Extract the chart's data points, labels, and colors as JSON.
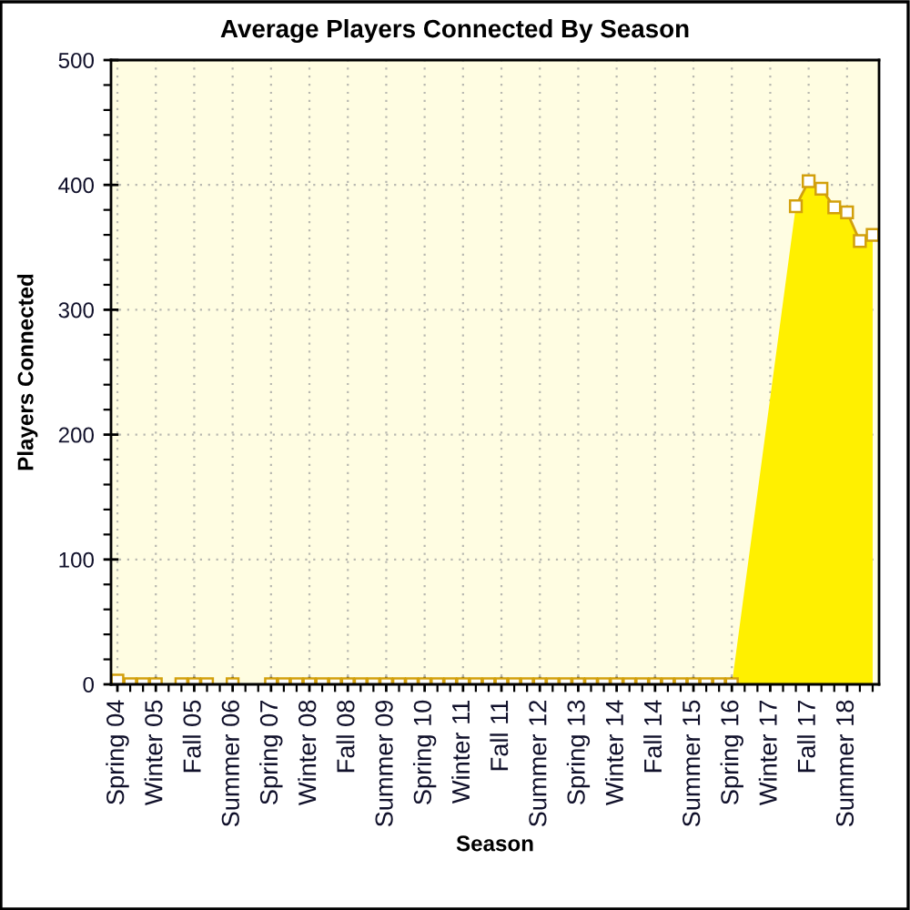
{
  "chart_data": {
    "type": "area",
    "title": "Average Players Connected By Season",
    "xlabel": "Season",
    "ylabel": "Players Connected",
    "categories": [
      "Spring 04",
      null,
      null,
      "Winter 05",
      null,
      null,
      "Fall 05",
      null,
      null,
      "Summer 06",
      null,
      null,
      "Spring 07",
      null,
      null,
      "Winter 08",
      null,
      null,
      "Fall 08",
      null,
      null,
      "Summer 09",
      null,
      null,
      "Spring 10",
      null,
      null,
      "Winter 11",
      null,
      null,
      "Fall 11",
      null,
      null,
      "Summer 12",
      null,
      null,
      "Spring 13",
      null,
      null,
      "Winter 14",
      null,
      null,
      "Fall 14",
      null,
      null,
      "Summer 15",
      null,
      null,
      "Spring 16",
      null,
      null,
      "Winter 17",
      null,
      null,
      "Fall 17",
      null,
      null,
      "Summer 18",
      null,
      null
    ],
    "series": [
      {
        "color": "#fff000",
        "values": [
          3,
          0,
          0,
          0,
          null,
          0,
          0,
          0,
          null,
          0,
          null,
          null,
          0,
          0,
          0,
          0,
          0,
          0,
          0,
          0,
          0,
          0,
          0,
          0,
          0,
          0,
          0,
          0,
          0,
          0,
          0,
          0,
          0,
          0,
          0,
          0,
          0,
          0,
          0,
          0,
          0,
          0,
          0,
          0,
          0,
          0,
          0,
          0,
          0,
          null,
          null,
          null,
          null,
          383,
          403,
          397,
          382,
          378,
          355,
          360
        ]
      }
    ],
    "ylim": [
      0,
      500
    ],
    "yticks": [
      0,
      {
        "value": 20,
        "label": null
      },
      {
        "value": 40,
        "label": null
      },
      {
        "value": 60,
        "label": null
      },
      {
        "value": 80,
        "label": null
      },
      100,
      {
        "value": 120,
        "label": null
      },
      {
        "value": 140,
        "label": null
      },
      {
        "value": 160,
        "label": null
      },
      {
        "value": 180,
        "label": null
      },
      200,
      {
        "value": 220,
        "label": null
      },
      {
        "value": 240,
        "label": null
      },
      {
        "value": 260,
        "label": null
      },
      {
        "value": 280,
        "label": null
      },
      300,
      {
        "value": 320,
        "label": null
      },
      {
        "value": 340,
        "label": null
      },
      {
        "value": 360,
        "label": null
      },
      {
        "value": 380,
        "label": null
      },
      400,
      {
        "value": 420,
        "label": null
      },
      {
        "value": 440,
        "label": null
      },
      {
        "value": 460,
        "label": null
      },
      {
        "value": 480,
        "label": null
      },
      500
    ],
    "grid": true,
    "marker": "square",
    "line_style": "solid"
  }
}
